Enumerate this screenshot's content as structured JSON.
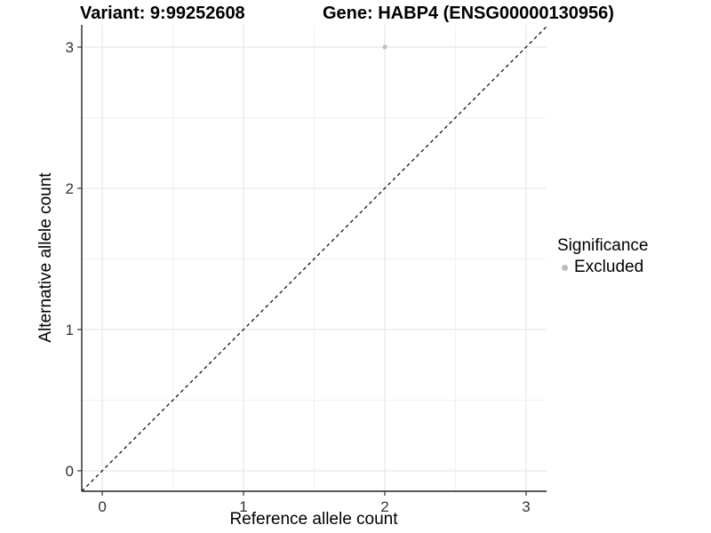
{
  "chart_data": {
    "type": "scatter",
    "title_left": "Variant: 9:99252608",
    "title_right": "Gene: HABP4 (ENSG00000130956)",
    "xlabel": "Reference allele count",
    "ylabel": "Alternative allele count",
    "xlim": [
      -0.145,
      3.145
    ],
    "ylim": [
      -0.145,
      3.157
    ],
    "x_major_ticks": [
      0,
      1,
      2,
      3
    ],
    "y_major_ticks": [
      0,
      1,
      2,
      3
    ],
    "x_tick_labels": [
      "0",
      "1",
      "2",
      "3"
    ],
    "y_tick_labels": [
      "0",
      "1",
      "2",
      "3"
    ],
    "x_minor_ticks": [
      0.5,
      1.5,
      2.5
    ],
    "y_minor_ticks": [
      0.5,
      1.5,
      2.5
    ],
    "grid": true,
    "reference_line": {
      "type": "abline",
      "slope": 1,
      "intercept": 0,
      "style": "dashed",
      "color": "#000000"
    },
    "series": [
      {
        "name": "Excluded",
        "color": "#bdbdbd",
        "points": [
          {
            "x": 2,
            "y": 3
          }
        ]
      }
    ],
    "legend": {
      "title": "Significance",
      "position": "right",
      "items": [
        {
          "label": "Excluded",
          "color": "#bdbdbd"
        }
      ]
    },
    "colors": {
      "grid_major": "#e3e3e3",
      "grid_minor": "#f1f1f1",
      "axis_line": "#222222",
      "tick_mark": "#333333",
      "point": "#bdbdbd"
    }
  }
}
